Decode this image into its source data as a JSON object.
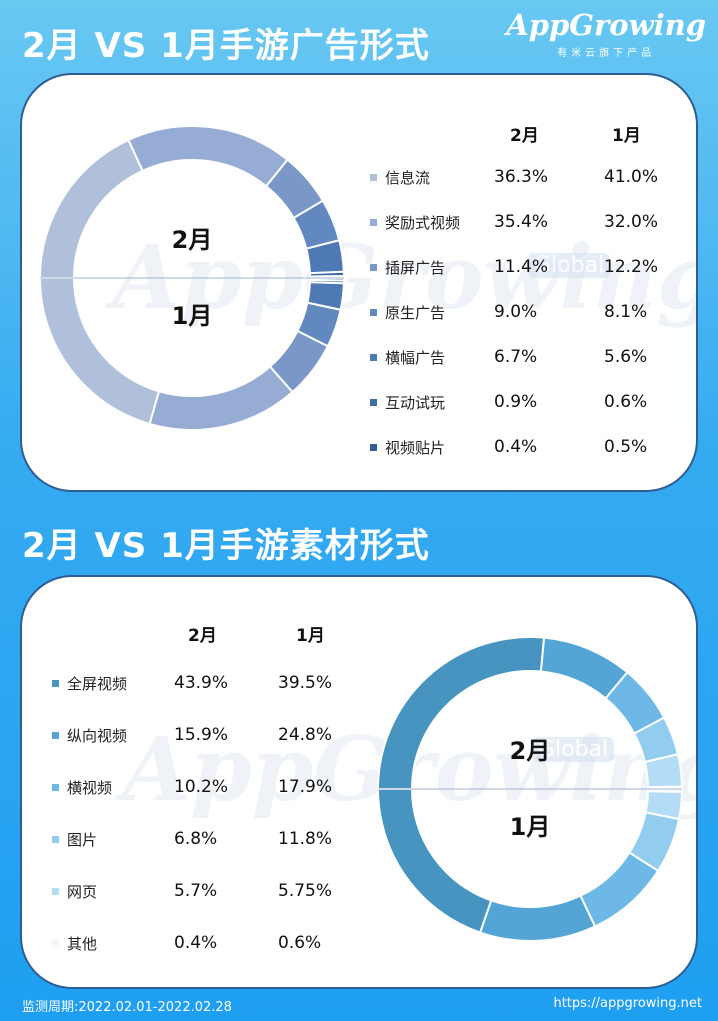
{
  "header": {
    "title1": "2月 VS 1月手游广告形式",
    "title2": "2月 VS 1月手游素材形式",
    "logo_main": "AppGrowing",
    "logo_sub": "有米云旗下产品"
  },
  "watermark": {
    "text": "AppGrowing",
    "global": "Global"
  },
  "chart_data": [
    {
      "type": "pie",
      "title": "2月 VS 1月手游广告形式",
      "columns": [
        "2月",
        "1月"
      ],
      "center_labels": {
        "top": "2月",
        "bottom": "1月"
      },
      "categories": [
        "信息流",
        "奖励式视频",
        "插屏广告",
        "原生广告",
        "横幅广告",
        "互动试玩",
        "视频贴片"
      ],
      "series": [
        {
          "name": "2月",
          "display": [
            "36.3%",
            "35.4%",
            "11.4%",
            "9.0%",
            "6.7%",
            "0.9%",
            "0.4%"
          ],
          "values": [
            36.3,
            35.4,
            11.4,
            9.0,
            6.7,
            0.9,
            0.4
          ]
        },
        {
          "name": "1月",
          "display": [
            "41.0%",
            "32.0%",
            "12.2%",
            "8.1%",
            "5.6%",
            "0.6%",
            "0.5%"
          ],
          "values": [
            41.0,
            32.0,
            12.2,
            8.1,
            5.6,
            0.6,
            0.5
          ]
        }
      ],
      "colors": [
        "#b0c0db",
        "#97acd4",
        "#7a97c8",
        "#6288c0",
        "#4f79b5",
        "#406ba9",
        "#345c98"
      ]
    },
    {
      "type": "pie",
      "title": "2月 VS 1月手游素材形式",
      "columns": [
        "2月",
        "1月"
      ],
      "center_labels": {
        "top": "2月",
        "bottom": "1月"
      },
      "categories": [
        "全屏视频",
        "纵向视频",
        "横视频",
        "图片",
        "网页",
        "其他"
      ],
      "series": [
        {
          "name": "2月",
          "display": [
            "43.9%",
            "15.9%",
            "10.2%",
            "6.8%",
            "5.7%",
            "0.4%"
          ],
          "values": [
            43.9,
            15.9,
            10.2,
            6.8,
            5.7,
            0.4
          ]
        },
        {
          "name": "1月",
          "display": [
            "39.5%",
            "24.8%",
            "17.9%",
            "11.8%",
            "5.75%",
            "0.6%"
          ],
          "values": [
            39.5,
            24.8,
            17.9,
            11.8,
            5.75,
            0.6
          ]
        }
      ],
      "colors": [
        "#4794c1",
        "#52a5d5",
        "#6db8e6",
        "#92cdf0",
        "#b5dcf6",
        "#eef6fb"
      ]
    }
  ],
  "footer": {
    "period": "监测周期:2022.02.01-2022.02.28",
    "url": "https://appgrowing.net"
  }
}
